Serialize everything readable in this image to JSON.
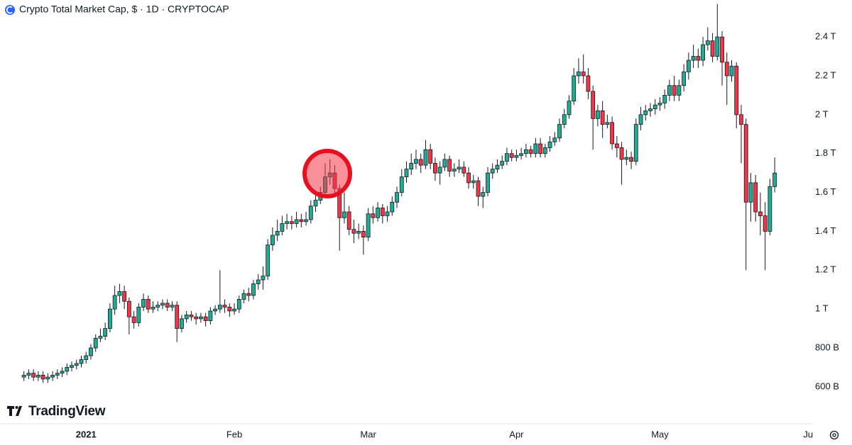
{
  "chart_data": {
    "type": "candlestick",
    "title": "Crypto Total Market Cap, $ · 1D · CRYPTOCAP",
    "brand": "TradingView",
    "up_color": "#22ab94",
    "down_color": "#f23645",
    "xlim": [
      -5,
      165
    ],
    "ylim": [
      0.41,
      2.59
    ],
    "xticks": [
      {
        "value": 13,
        "label": "2021"
      },
      {
        "value": 44,
        "label": "Feb"
      },
      {
        "value": 72,
        "label": "Mar"
      },
      {
        "value": 103,
        "label": "Apr"
      },
      {
        "value": 133,
        "label": "May"
      },
      {
        "value": 164,
        "label": "Ju"
      }
    ],
    "yticks": [
      {
        "value": 0.6,
        "label": "600 B"
      },
      {
        "value": 0.8,
        "label": "800 B"
      },
      {
        "value": 1,
        "label": "1 T"
      },
      {
        "value": 1.2,
        "label": "1.2 T"
      },
      {
        "value": 1.4,
        "label": "1.4 T"
      },
      {
        "value": 1.6,
        "label": "1.6 T"
      },
      {
        "value": 1.8,
        "label": "1.8 T"
      },
      {
        "value": 2,
        "label": "2 T"
      },
      {
        "value": 2.2,
        "label": "2.2 T"
      },
      {
        "value": 2.4,
        "label": "2.4 T"
      }
    ],
    "open": [
      0.65,
      0.66,
      0.67,
      0.65,
      0.66,
      0.64,
      0.65,
      0.66,
      0.67,
      0.68,
      0.7,
      0.71,
      0.72,
      0.74,
      0.76,
      0.8,
      0.85,
      0.86,
      0.9,
      1.0,
      1.07,
      1.09,
      1.04,
      0.96,
      0.93,
      1.01,
      1.05,
      1.0,
      1.01,
      1.02,
      1.03,
      1.01,
      1.02,
      0.9,
      0.95,
      0.97,
      0.96,
      0.95,
      0.96,
      0.94,
      0.99,
      1.0,
      1.02,
      1.01,
      0.99,
      1.0,
      1.05,
      1.08,
      1.07,
      1.13,
      1.15,
      1.17,
      1.33,
      1.38,
      1.4,
      1.44,
      1.45,
      1.44,
      1.46,
      1.45,
      1.46,
      1.53,
      1.56,
      1.6,
      1.68,
      1.7,
      1.62,
      1.47,
      1.5,
      1.41,
      1.39,
      1.4,
      1.37,
      1.49,
      1.47,
      1.52,
      1.48,
      1.5,
      1.55,
      1.6,
      1.68,
      1.72,
      1.75,
      1.77,
      1.74,
      1.82,
      1.75,
      1.7,
      1.73,
      1.77,
      1.71,
      1.72,
      1.73,
      1.7,
      1.65,
      1.66,
      1.58,
      1.6,
      1.7,
      1.72,
      1.74,
      1.76,
      1.8,
      1.78,
      1.79,
      1.8,
      1.82,
      1.8,
      1.85,
      1.8,
      1.83,
      1.86,
      1.88,
      1.95,
      2.0,
      2.07,
      2.2,
      2.22,
      2.2,
      2.12,
      1.98,
      2.02,
      1.95,
      1.96,
      1.85,
      1.83,
      1.77,
      1.78,
      1.76,
      1.95,
      2.0,
      2.02,
      2.03,
      2.05,
      2.06,
      2.1,
      2.15,
      2.1,
      2.15,
      2.22,
      2.28,
      2.3,
      2.28,
      2.36,
      2.38,
      2.3,
      2.4,
      2.27,
      2.2,
      2.25,
      2.0,
      1.95,
      1.55,
      1.65,
      1.5,
      1.48,
      1.4,
      1.63
    ],
    "high": [
      0.68,
      0.69,
      0.69,
      0.68,
      0.68,
      0.67,
      0.68,
      0.69,
      0.7,
      0.72,
      0.73,
      0.74,
      0.76,
      0.78,
      0.82,
      0.87,
      0.9,
      0.93,
      1.03,
      1.12,
      1.13,
      1.12,
      1.06,
      0.99,
      1.03,
      1.08,
      1.07,
      1.04,
      1.04,
      1.05,
      1.05,
      1.04,
      1.04,
      0.97,
      0.99,
      0.99,
      0.98,
      0.98,
      0.98,
      1.01,
      1.02,
      1.2,
      1.05,
      1.03,
      1.03,
      1.07,
      1.1,
      1.11,
      1.15,
      1.18,
      1.22,
      1.36,
      1.42,
      1.46,
      1.48,
      1.49,
      1.48,
      1.5,
      1.49,
      1.5,
      1.56,
      1.6,
      1.63,
      1.75,
      1.77,
      1.74,
      1.64,
      1.6,
      1.53,
      1.46,
      1.44,
      1.43,
      1.52,
      1.53,
      1.55,
      1.54,
      1.53,
      1.58,
      1.63,
      1.72,
      1.76,
      1.8,
      1.82,
      1.8,
      1.87,
      1.85,
      1.78,
      1.76,
      1.8,
      1.79,
      1.75,
      1.77,
      1.76,
      1.73,
      1.69,
      1.68,
      1.63,
      1.73,
      1.75,
      1.77,
      1.79,
      1.83,
      1.82,
      1.82,
      1.83,
      1.85,
      1.84,
      1.88,
      1.88,
      1.85,
      1.89,
      1.91,
      1.98,
      2.03,
      2.1,
      2.24,
      2.29,
      2.31,
      2.24,
      2.15,
      2.05,
      2.07,
      2.0,
      1.99,
      1.89,
      1.86,
      1.82,
      1.81,
      1.98,
      2.04,
      2.05,
      2.06,
      2.08,
      2.09,
      2.13,
      2.18,
      2.2,
      2.18,
      2.26,
      2.32,
      2.36,
      2.34,
      2.4,
      2.45,
      2.42,
      2.57,
      2.43,
      2.32,
      2.28,
      2.27,
      2.05,
      1.98,
      1.7,
      1.69,
      1.6,
      1.55,
      1.67,
      1.78
    ],
    "low": [
      0.63,
      0.64,
      0.63,
      0.63,
      0.62,
      0.62,
      0.63,
      0.64,
      0.65,
      0.66,
      0.68,
      0.69,
      0.7,
      0.72,
      0.74,
      0.78,
      0.83,
      0.84,
      0.88,
      0.97,
      1.03,
      1.0,
      0.87,
      0.9,
      0.91,
      0.99,
      0.98,
      0.98,
      0.99,
      1.0,
      0.99,
      0.99,
      0.83,
      0.88,
      0.93,
      0.94,
      0.92,
      0.93,
      0.91,
      0.92,
      0.97,
      0.98,
      0.98,
      0.96,
      0.97,
      0.98,
      1.03,
      1.04,
      1.05,
      1.1,
      1.1,
      1.15,
      1.3,
      1.35,
      1.38,
      1.41,
      1.41,
      1.42,
      1.42,
      1.43,
      1.44,
      1.5,
      1.54,
      1.58,
      1.64,
      1.58,
      1.3,
      1.44,
      1.38,
      1.34,
      1.36,
      1.28,
      1.35,
      1.44,
      1.45,
      1.44,
      1.45,
      1.48,
      1.52,
      1.58,
      1.65,
      1.69,
      1.72,
      1.7,
      1.72,
      1.72,
      1.66,
      1.64,
      1.71,
      1.68,
      1.68,
      1.7,
      1.68,
      1.62,
      1.62,
      1.53,
      1.52,
      1.58,
      1.67,
      1.7,
      1.72,
      1.74,
      1.76,
      1.76,
      1.77,
      1.78,
      1.78,
      1.78,
      1.78,
      1.78,
      1.81,
      1.84,
      1.86,
      1.93,
      1.98,
      2.05,
      2.16,
      2.16,
      2.08,
      1.82,
      1.94,
      1.88,
      1.93,
      1.82,
      1.78,
      1.64,
      1.74,
      1.72,
      1.74,
      1.92,
      1.97,
      1.99,
      2.0,
      2.02,
      2.03,
      2.07,
      2.07,
      2.07,
      2.12,
      2.18,
      2.24,
      2.24,
      2.25,
      2.33,
      2.27,
      2.28,
      2.15,
      2.05,
      2.17,
      1.93,
      1.75,
      1.2,
      1.45,
      1.45,
      1.38,
      1.2,
      1.38,
      1.6
    ],
    "close": [
      0.66,
      0.67,
      0.65,
      0.66,
      0.64,
      0.65,
      0.66,
      0.67,
      0.68,
      0.7,
      0.71,
      0.72,
      0.74,
      0.76,
      0.8,
      0.85,
      0.86,
      0.9,
      1.0,
      1.07,
      1.09,
      1.04,
      0.96,
      0.93,
      1.01,
      1.05,
      1.0,
      1.01,
      1.02,
      1.03,
      1.01,
      1.02,
      0.9,
      0.95,
      0.97,
      0.96,
      0.95,
      0.96,
      0.94,
      0.99,
      1.0,
      1.02,
      1.01,
      0.99,
      1.0,
      1.05,
      1.08,
      1.07,
      1.13,
      1.15,
      1.17,
      1.33,
      1.38,
      1.4,
      1.44,
      1.45,
      1.44,
      1.46,
      1.45,
      1.46,
      1.53,
      1.56,
      1.6,
      1.68,
      1.7,
      1.62,
      1.47,
      1.5,
      1.41,
      1.39,
      1.4,
      1.37,
      1.49,
      1.47,
      1.52,
      1.48,
      1.5,
      1.55,
      1.6,
      1.68,
      1.72,
      1.75,
      1.77,
      1.74,
      1.82,
      1.75,
      1.7,
      1.73,
      1.77,
      1.71,
      1.72,
      1.73,
      1.7,
      1.65,
      1.66,
      1.58,
      1.6,
      1.7,
      1.72,
      1.74,
      1.76,
      1.8,
      1.78,
      1.79,
      1.8,
      1.82,
      1.8,
      1.85,
      1.8,
      1.83,
      1.86,
      1.88,
      1.95,
      2.0,
      2.07,
      2.2,
      2.22,
      2.2,
      2.12,
      1.98,
      2.02,
      1.95,
      1.96,
      1.85,
      1.83,
      1.77,
      1.78,
      1.76,
      1.95,
      2.0,
      2.02,
      2.03,
      2.05,
      2.06,
      2.1,
      2.15,
      2.1,
      2.15,
      2.22,
      2.28,
      2.3,
      2.28,
      2.36,
      2.38,
      2.3,
      2.4,
      2.27,
      2.2,
      2.25,
      2.0,
      1.95,
      1.55,
      1.65,
      1.5,
      1.48,
      1.4,
      1.63,
      1.7
    ]
  }
}
